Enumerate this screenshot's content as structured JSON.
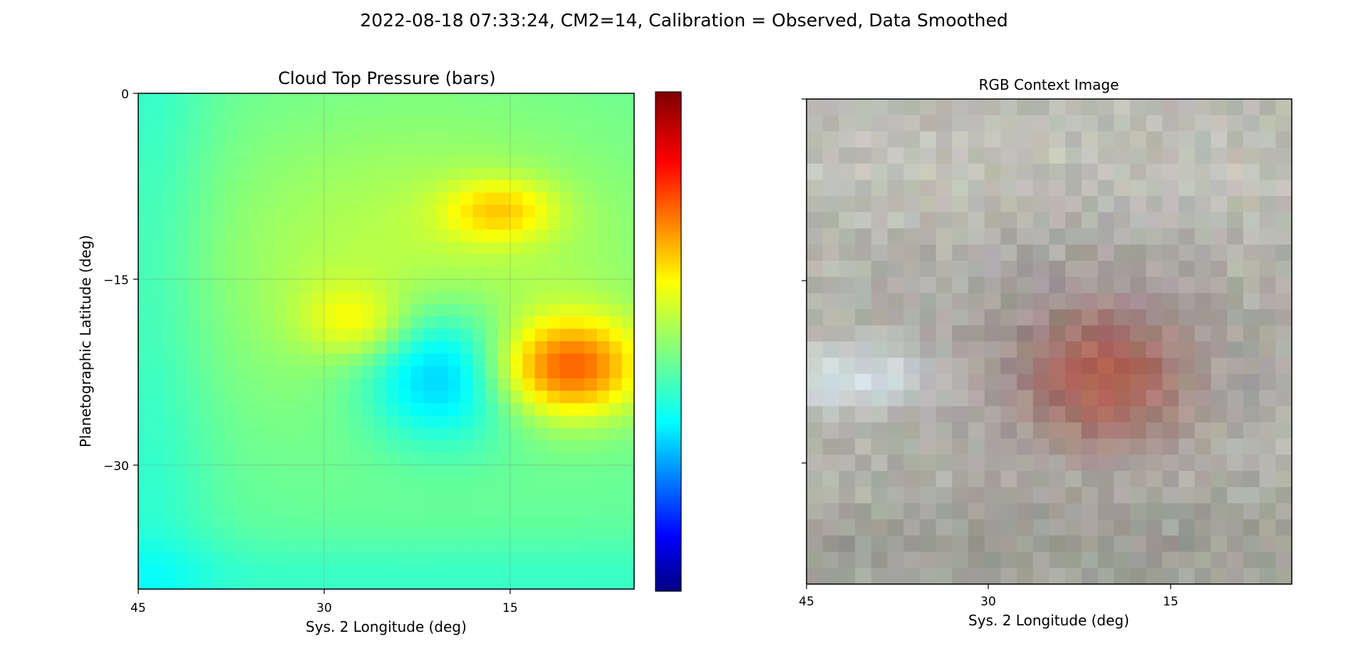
{
  "suptitle": "2022-08-18 07:33:24, CM2=14, Calibration = Observed, Data Smoothed",
  "chart_data": [
    {
      "type": "heatmap",
      "title": "Cloud Top Pressure (bars)",
      "xlabel": "Sys. 2 Longitude (deg)",
      "ylabel": "Planetographic Latitude (deg)",
      "xlim": [
        45,
        5
      ],
      "ylim": [
        -40,
        0
      ],
      "xticks": [
        45,
        30,
        15
      ],
      "yticks": [
        0,
        -15,
        -30
      ],
      "grid": true,
      "colormap": "jet",
      "colorbar": {
        "placement": "right",
        "ticks": []
      },
      "features": [
        {
          "name": "low-pressure-oval",
          "lon": 20.5,
          "lat": -23,
          "lon_radius": 6.5,
          "lat_radius": 5.5,
          "level": 0.33
        },
        {
          "name": "high-pressure-band-east",
          "lon": 10,
          "lat": -22,
          "lon_radius": 5.5,
          "lat_radius": 4,
          "level": 0.78
        },
        {
          "name": "high-pressure-patch-north",
          "lon": 16,
          "lat": -9.5,
          "lon_radius": 4.5,
          "lat_radius": 2.5,
          "level": 0.68
        },
        {
          "name": "high-pressure-arc-west",
          "lon": 28,
          "lat": -18,
          "lon_radius": 4,
          "lat_radius": 3,
          "level": 0.62
        }
      ]
    },
    {
      "type": "heatmap",
      "title": "RGB Context Image",
      "xlabel": "Sys. 2 Longitude (deg)",
      "ylabel": "",
      "xlim": [
        45,
        5
      ],
      "ylim": [
        -40,
        0
      ],
      "xticks": [
        45,
        30,
        15
      ],
      "yticks": [
        0,
        -15,
        -30
      ],
      "colormap": "rgb",
      "features": [
        {
          "name": "red-oval",
          "lon": 20.5,
          "lat": -23,
          "lon_radius": 6,
          "lat_radius": 5,
          "color": "#b05a4a"
        },
        {
          "name": "dark-collar",
          "lon": 21,
          "lat": -21,
          "lon_radius": 11,
          "lat_radius": 9,
          "color": "#8c7f88"
        },
        {
          "name": "bright-wake",
          "lon": 41,
          "lat": -23,
          "lon_radius": 6,
          "lat_radius": 2.5,
          "color": "#d8e6ee"
        }
      ]
    }
  ],
  "colors": {
    "jet_dark_blue": "#00007f",
    "jet_blue": "#0000ff",
    "jet_cyan": "#00ffff",
    "jet_yellow": "#ffff00",
    "jet_red": "#ff0000",
    "jet_dark_red": "#7f0000",
    "rgb_background": "#b3b4ab"
  }
}
